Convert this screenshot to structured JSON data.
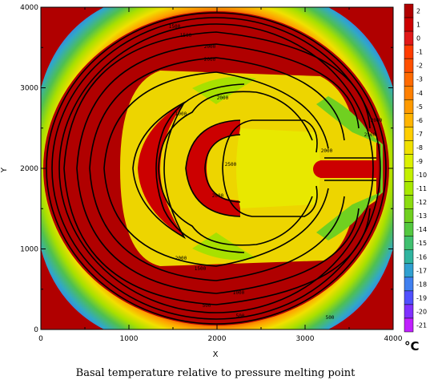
{
  "chart_data": {
    "type": "heatmap",
    "title": "Basal temperature relative to pressure melting point",
    "xlabel": "X",
    "ylabel": "Y",
    "xlim": [
      0,
      4000
    ],
    "ylim": [
      0,
      4000
    ],
    "x_ticks": [
      "0",
      "1000",
      "2000",
      "3000",
      "4000"
    ],
    "y_ticks": [
      "0",
      "1000",
      "2000",
      "3000",
      "4000"
    ],
    "colorbar": {
      "unit": "°C",
      "levels": [
        "2",
        "1",
        "0",
        "-1",
        "-2",
        "-3",
        "-4",
        "-5",
        "-6",
        "-7",
        "-8",
        "-9",
        "-10",
        "-11",
        "-12",
        "-13",
        "-14",
        "-15",
        "-16",
        "-17",
        "-18",
        "-19",
        "-20",
        "-21"
      ],
      "colors": [
        "#b00000",
        "#cc0000",
        "#e01818",
        "#ff3c00",
        "#ff5000",
        "#ff6a00",
        "#ff8000",
        "#ff9a00",
        "#ffb400",
        "#ffce00",
        "#f0e000",
        "#dcf000",
        "#c4f000",
        "#a8e800",
        "#8cdc10",
        "#70d020",
        "#54c840",
        "#40c070",
        "#30b4a0",
        "#30a0d0",
        "#4080f0",
        "#5050ff",
        "#8030ff",
        "#c020ff"
      ]
    },
    "contour_labels": [
      "2500",
      "2000",
      "1500",
      "1000",
      "500",
      "3000"
    ]
  }
}
